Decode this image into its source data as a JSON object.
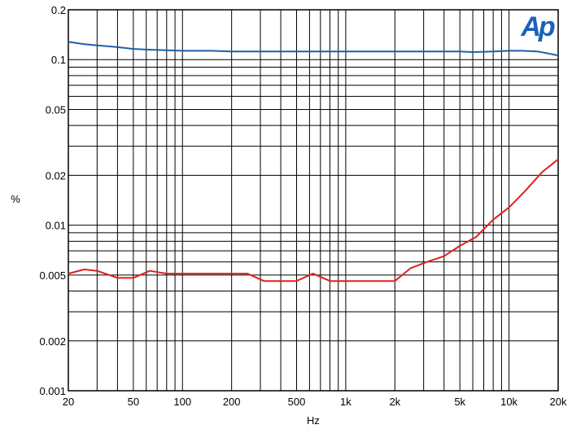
{
  "chart_data": {
    "type": "line",
    "xlabel": "Hz",
    "ylabel": "%",
    "x_scale": "log",
    "y_scale": "log",
    "xlim": [
      20,
      20000
    ],
    "ylim": [
      0.001,
      0.2
    ],
    "grid": true,
    "x_ticks": [
      {
        "value": 20,
        "label": "20"
      },
      {
        "value": 50,
        "label": "50"
      },
      {
        "value": 100,
        "label": "100"
      },
      {
        "value": 200,
        "label": "200"
      },
      {
        "value": 500,
        "label": "500"
      },
      {
        "value": 1000,
        "label": "1k"
      },
      {
        "value": 2000,
        "label": "2k"
      },
      {
        "value": 5000,
        "label": "5k"
      },
      {
        "value": 10000,
        "label": "10k"
      },
      {
        "value": 20000,
        "label": "20k"
      }
    ],
    "y_ticks": [
      {
        "value": 0.2,
        "label": "0.2"
      },
      {
        "value": 0.1,
        "label": "0.1"
      },
      {
        "value": 0.05,
        "label": "0.05"
      },
      {
        "value": 0.02,
        "label": "0.02"
      },
      {
        "value": 0.01,
        "label": "0.01"
      },
      {
        "value": 0.005,
        "label": "0.005"
      },
      {
        "value": 0.002,
        "label": "0.002"
      },
      {
        "value": 0.001,
        "label": "0.001"
      }
    ],
    "series": [
      {
        "color": "#1f5fa6",
        "x": [
          20,
          25,
          30,
          40,
          50,
          60,
          80,
          100,
          150,
          200,
          300,
          500,
          1000,
          2000,
          3000,
          5000,
          6000,
          8000,
          10000,
          12000,
          15000,
          20000
        ],
        "y": [
          0.128,
          0.124,
          0.122,
          0.119,
          0.116,
          0.115,
          0.114,
          0.113,
          0.113,
          0.112,
          0.112,
          0.112,
          0.112,
          0.112,
          0.112,
          0.112,
          0.111,
          0.112,
          0.113,
          0.113,
          0.112,
          0.106
        ]
      },
      {
        "color": "#e02020",
        "x": [
          20,
          25,
          30,
          40,
          50,
          63,
          80,
          100,
          125,
          160,
          200,
          250,
          315,
          400,
          500,
          630,
          800,
          1000,
          1250,
          1600,
          2000,
          2500,
          3150,
          4000,
          5000,
          6300,
          8000,
          10000,
          12500,
          16000,
          20000
        ],
        "y": [
          0.0051,
          0.0054,
          0.0053,
          0.0048,
          0.0048,
          0.0053,
          0.0051,
          0.0051,
          0.0051,
          0.0051,
          0.0051,
          0.0051,
          0.0046,
          0.0046,
          0.0046,
          0.0051,
          0.0046,
          0.0046,
          0.0046,
          0.0046,
          0.0046,
          0.0055,
          0.006,
          0.0065,
          0.0075,
          0.0085,
          0.0108,
          0.0128,
          0.016,
          0.021,
          0.025
        ]
      }
    ]
  },
  "logo": {
    "text": "Ap",
    "color": "#1a62b8"
  }
}
